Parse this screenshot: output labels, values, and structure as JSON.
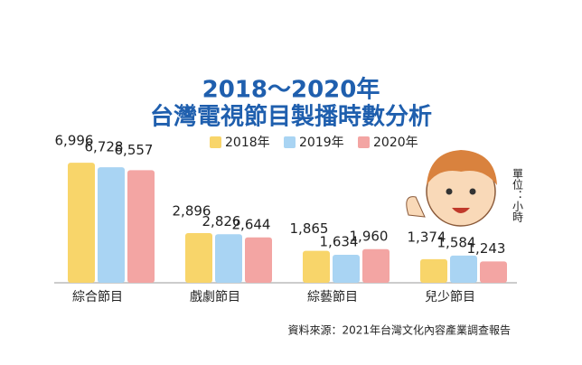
{
  "chart_data": {
    "type": "bar",
    "title": "2018～2020年",
    "subtitle": "台灣電視節目製播時數分析",
    "categories": [
      "綜合節目",
      "戲劇節目",
      "綜藝節目",
      "兒少節目"
    ],
    "series": [
      {
        "name": "2018年",
        "color": "#f8d56a",
        "values": [
          6996,
          2896,
          1865,
          1374
        ],
        "value_labels": [
          "6,996",
          "2,896",
          "1,865",
          "1,374"
        ]
      },
      {
        "name": "2019年",
        "color": "#a9d4f3",
        "values": [
          6728,
          2826,
          1634,
          1584
        ],
        "value_labels": [
          "6,728",
          "2,826",
          "1,634",
          "1,584"
        ]
      },
      {
        "name": "2020年",
        "color": "#f3a5a3",
        "values": [
          6557,
          2644,
          1960,
          1243
        ],
        "value_labels": [
          "6,557",
          "2,644",
          "1,960",
          "1,243"
        ]
      }
    ],
    "unit": "單位：小時",
    "source": "資料來源：2021年台灣文化內容產業調查報告"
  }
}
